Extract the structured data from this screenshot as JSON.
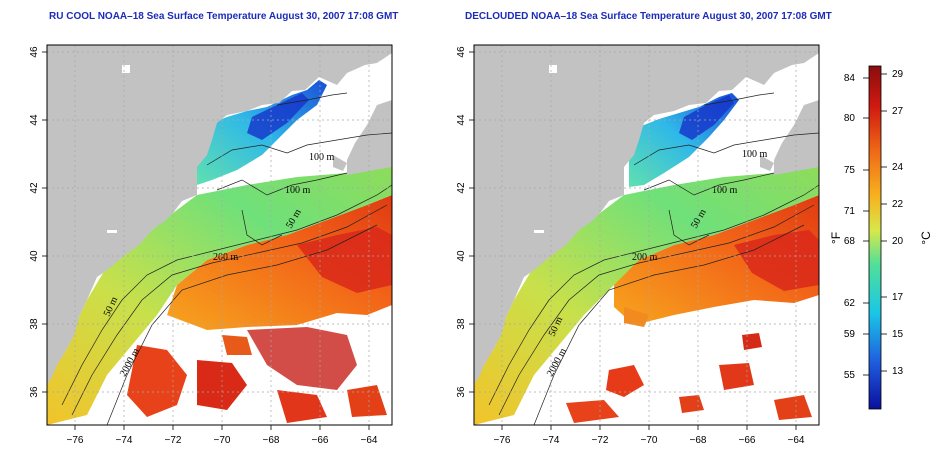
{
  "panels": [
    {
      "title": "RU COOL NOAA–18 Sea Surface Temperature August 30, 2007 17:08 GMT"
    },
    {
      "title": "DECLOUDED NOAA–18 Sea Surface Temperature August 30, 2007 17:08 GMT"
    }
  ],
  "axes": {
    "x_ticks": [
      "−76",
      "−74",
      "−72",
      "−70",
      "−68",
      "−66",
      "−64"
    ],
    "y_ticks": [
      "36",
      "38",
      "40",
      "42",
      "44",
      "46"
    ]
  },
  "contour_labels": {
    "left": [
      "100 m",
      "100 m",
      "50 m",
      "200 m",
      "50 m",
      "2000 m"
    ],
    "right": [
      "100 m",
      "100 m",
      "50 m",
      "200 m",
      "50 m",
      "2000 m"
    ]
  },
  "colorbar": {
    "fahrenheit_ticks": [
      "84",
      "80",
      "75",
      "71",
      "68",
      "62",
      "59",
      "55"
    ],
    "celsius_ticks": [
      "29",
      "27",
      "24",
      "22",
      "20",
      "17",
      "15",
      "13"
    ],
    "fahrenheit_label": "°F",
    "celsius_label": "°C",
    "colors": [
      "#0a0f9e",
      "#1f5fe0",
      "#19c7e6",
      "#4fe09a",
      "#d7e84a",
      "#f7b21e",
      "#f06a16",
      "#d11a10",
      "#8a0d0d"
    ]
  },
  "colors": {
    "land": "#c2c2c2",
    "title": "#1c2bb8",
    "grid": "#a8a8a8"
  }
}
